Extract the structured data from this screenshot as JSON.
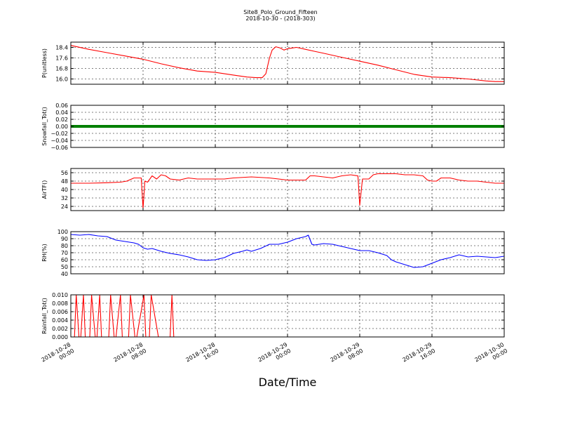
{
  "figure": {
    "title": "Site8_Polo_Ground_Fifteen",
    "subtitle": "2018-10-30 - (2018-303)",
    "xlabel": "Date/Time",
    "x_ticks": [
      {
        "t": 0,
        "l1": "2018-10-28",
        "l2": "00:00"
      },
      {
        "t": 8,
        "l1": "2018-10-28",
        "l2": "08:00"
      },
      {
        "t": 16,
        "l1": "2018-10-28",
        "l2": "16:00"
      },
      {
        "t": 24,
        "l1": "2018-10-29",
        "l2": "00:00"
      },
      {
        "t": 32,
        "l1": "2018-10-29",
        "l2": "08:00"
      },
      {
        "t": 40,
        "l1": "2018-10-29",
        "l2": "16:00"
      },
      {
        "t": 48,
        "l1": "2018-10-30",
        "l2": "00:00"
      }
    ]
  },
  "chart_data": [
    {
      "type": "line",
      "ylabel": "P(unitless)",
      "ylim": [
        15.6,
        18.8
      ],
      "yticks": [
        16.0,
        16.8,
        17.6,
        18.4
      ],
      "ytick_labels": [
        "16.0",
        "16.8",
        "17.6",
        "18.4"
      ],
      "xlim_hours": [
        0,
        48
      ],
      "grid": true,
      "color": "#ff0000",
      "x": [
        0,
        2,
        4,
        6,
        8,
        10,
        12,
        14,
        16,
        18,
        19.5,
        20.5,
        21.2,
        21.6,
        22.0,
        22.3,
        22.7,
        23.2,
        23.6,
        24.0,
        24.5,
        25.0,
        26,
        27,
        28,
        30,
        32,
        34,
        36,
        38,
        40,
        42,
        44,
        46,
        47,
        48
      ],
      "y": [
        18.55,
        18.25,
        18.0,
        17.75,
        17.5,
        17.15,
        16.85,
        16.6,
        16.5,
        16.3,
        16.15,
        16.1,
        16.1,
        16.4,
        17.6,
        18.2,
        18.45,
        18.35,
        18.2,
        18.3,
        18.35,
        18.4,
        18.25,
        18.1,
        17.95,
        17.65,
        17.35,
        17.05,
        16.7,
        16.35,
        16.15,
        16.1,
        16.0,
        15.85,
        15.8,
        15.8
      ]
    },
    {
      "type": "line",
      "ylabel": "Snowfall_Tot()",
      "ylim": [
        -0.06,
        0.06
      ],
      "yticks": [
        -0.06,
        -0.04,
        -0.02,
        0.0,
        0.02,
        0.04,
        0.06
      ],
      "ytick_labels": [
        "−0.06",
        "−0.04",
        "−0.02",
        "0.00",
        "0.02",
        "0.04",
        "0.06"
      ],
      "xlim_hours": [
        0,
        48
      ],
      "grid": true,
      "color": "#008000",
      "x": [
        0,
        48
      ],
      "y": [
        0,
        0
      ]
    },
    {
      "type": "line",
      "ylabel": "AirTF()",
      "ylim": [
        20,
        60
      ],
      "yticks": [
        24,
        32,
        40,
        48,
        56
      ],
      "ytick_labels": [
        "24",
        "32",
        "40",
        "48",
        "56"
      ],
      "xlim_hours": [
        0,
        48
      ],
      "grid": true,
      "color": "#ff0000",
      "x": [
        0,
        2,
        4,
        5.5,
        6.2,
        7,
        7.8,
        8.0,
        8.2,
        8.5,
        9,
        9.5,
        10,
        10.5,
        11,
        12,
        13,
        14,
        15,
        16,
        17,
        18,
        20,
        22,
        24,
        26,
        26.5,
        27,
        28,
        29,
        30,
        31,
        31.8,
        32.0,
        32.3,
        33,
        33.5,
        34,
        35,
        36,
        37,
        38,
        39,
        39.5,
        40,
        40.5,
        41,
        42,
        43,
        44,
        45,
        46,
        47,
        48
      ],
      "y": [
        46,
        46,
        46.5,
        47,
        48,
        51,
        51,
        22,
        48,
        47,
        53,
        50,
        54,
        53,
        50,
        49,
        51,
        50,
        50,
        50,
        50,
        51,
        52,
        51,
        49,
        49,
        53,
        53,
        52,
        51,
        53,
        54,
        53,
        25,
        50,
        50,
        54,
        55,
        55,
        55,
        54,
        54,
        53,
        49,
        48,
        48,
        51,
        51,
        49,
        48,
        48,
        47,
        46,
        46
      ]
    },
    {
      "type": "line",
      "ylabel": "RH(%)",
      "ylim": [
        40,
        100
      ],
      "yticks": [
        40,
        50,
        60,
        70,
        80,
        90,
        100
      ],
      "ytick_labels": [
        "40",
        "50",
        "60",
        "70",
        "80",
        "90",
        "100"
      ],
      "xlim_hours": [
        0,
        48
      ],
      "grid": true,
      "color": "#0000ff",
      "x": [
        0,
        1,
        2,
        3,
        4,
        5,
        6,
        7,
        7.5,
        8,
        8.5,
        9,
        10,
        11,
        12,
        13,
        14,
        15,
        16,
        17,
        18,
        19,
        19.5,
        20,
        21,
        22,
        23,
        24,
        25,
        26,
        26.3,
        26.7,
        27,
        28,
        29,
        30,
        31,
        32,
        33,
        34,
        35,
        35.5,
        36,
        37,
        38,
        39,
        40,
        41,
        42,
        43,
        44,
        45,
        46,
        47,
        48
      ],
      "y": [
        96,
        95,
        96,
        94,
        93,
        88,
        86,
        84,
        82,
        77,
        75,
        76,
        72,
        69,
        67,
        64,
        60,
        59,
        60,
        63,
        69,
        72,
        74,
        72,
        76,
        82,
        82,
        85,
        90,
        93,
        95,
        82,
        81,
        83,
        82,
        79,
        76,
        73,
        73,
        70,
        66,
        60,
        57,
        53,
        49,
        50,
        55,
        60,
        63,
        67,
        64,
        65,
        64,
        63,
        65
      ]
    },
    {
      "type": "line",
      "ylabel": "Rainfall_Tot()",
      "ylim": [
        0,
        0.01
      ],
      "yticks": [
        0.0,
        0.002,
        0.004,
        0.006,
        0.008,
        0.01
      ],
      "ytick_labels": [
        "0.000",
        "0.002",
        "0.004",
        "0.006",
        "0.008",
        "0.010"
      ],
      "xlim_hours": [
        0,
        48
      ],
      "grid": true,
      "color": "#ff0000",
      "x": [
        0,
        0.4,
        0.6,
        0.9,
        1.1,
        1.4,
        1.6,
        2.1,
        2.3,
        2.7,
        2.9,
        3.2,
        3.4,
        4.2,
        4.4,
        4.8,
        5.0,
        5.5,
        5.7,
        6.4,
        6.6,
        7.1,
        7.3,
        8.1,
        8.3,
        8.7,
        8.9,
        9.7,
        9.9,
        11.0,
        11.2,
        11.4,
        11.6,
        48
      ],
      "y": [
        0,
        0,
        0.01,
        0,
        0,
        0.01,
        0,
        0,
        0.01,
        0,
        0,
        0.01,
        0,
        0,
        0.01,
        0,
        0,
        0.01,
        0,
        0,
        0.01,
        0,
        0,
        0.01,
        0,
        0,
        0.01,
        0,
        0,
        0,
        0.01,
        0,
        0,
        0
      ]
    }
  ]
}
